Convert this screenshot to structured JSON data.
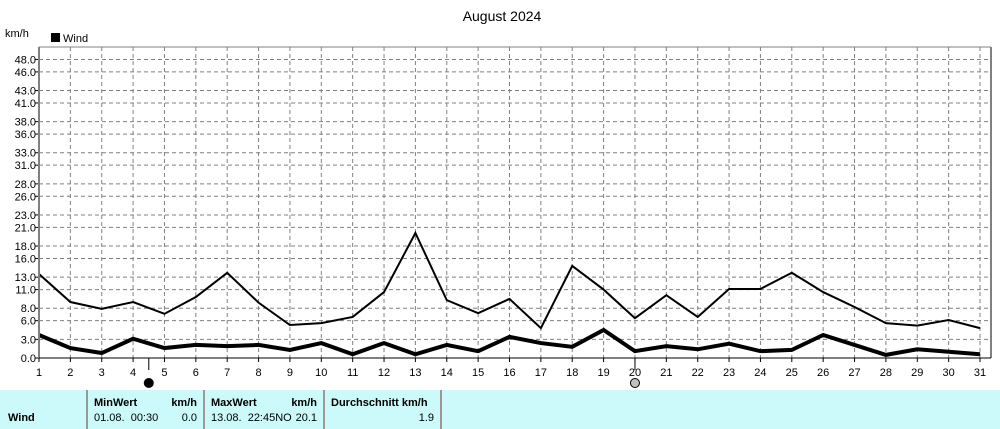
{
  "chart_data": {
    "type": "line",
    "title": "August 2024",
    "ylabel": "km/h",
    "legend": {
      "entries": [
        "Wind"
      ],
      "placement": "top-left",
      "color": "#000000"
    },
    "x": [
      1,
      2,
      3,
      4,
      5,
      6,
      7,
      8,
      9,
      10,
      11,
      12,
      13,
      14,
      15,
      16,
      17,
      18,
      19,
      20,
      21,
      22,
      23,
      24,
      25,
      26,
      27,
      28,
      29,
      30,
      31
    ],
    "xlim": [
      1,
      31
    ],
    "ylim": [
      0,
      50
    ],
    "yticks": [
      "0.0",
      "3.0",
      "6.0",
      "8.0",
      "11.0",
      "13.0",
      "16.0",
      "18.0",
      "21.0",
      "23.0",
      "26.0",
      "28.0",
      "31.0",
      "33.0",
      "36.0",
      "38.0",
      "41.0",
      "43.0",
      "46.0",
      "48.0"
    ],
    "ytick_values": [
      0,
      3,
      6,
      8,
      11,
      13,
      16,
      18,
      21,
      23,
      26,
      28,
      31,
      33,
      36,
      38,
      41,
      43,
      46,
      48
    ],
    "grid": true,
    "series": [
      {
        "values": [
          13.5,
          9.0,
          7.9,
          9.0,
          7.1,
          9.8,
          13.7,
          8.9,
          5.3,
          5.6,
          6.6,
          10.6,
          20.1,
          9.3,
          7.2,
          9.5,
          4.8,
          14.8,
          11.0,
          6.4,
          10.1,
          6.6,
          11.1,
          11.1,
          13.7,
          10.6,
          8.2,
          5.6,
          5.2,
          6.1,
          4.8
        ],
        "width": 2
      },
      {
        "values": [
          3.7,
          1.6,
          0.8,
          3.1,
          1.6,
          2.1,
          1.9,
          2.1,
          1.3,
          2.4,
          0.6,
          2.4,
          0.6,
          2.1,
          1.1,
          3.4,
          2.4,
          1.8,
          4.5,
          1.1,
          1.9,
          1.4,
          2.3,
          1.1,
          1.3,
          3.7,
          2.1,
          0.5,
          1.4,
          1.0,
          0.6
        ],
        "width": 4
      }
    ],
    "moon_phases": [
      {
        "day": 4.5,
        "phase": "new-moon",
        "color": "#000000"
      },
      {
        "day": 20,
        "phase": "full-moon",
        "color": "#c0c0c0"
      }
    ]
  },
  "stats": {
    "row_label": "Wind",
    "min_header": "MinWert",
    "min_unit": "km/h",
    "min_time": "01.08.  00:30",
    "min_value": "0.0",
    "max_header": "MaxWert",
    "max_unit": "km/h",
    "max_time": "13.08.  22:45NO",
    "max_value": "20.1",
    "avg_header": "Durchschnitt km/h",
    "avg_value": "1.9"
  },
  "colors": {
    "background": "#ffffff",
    "stats_bg": "#ccf9f9",
    "grid": "#808080"
  }
}
